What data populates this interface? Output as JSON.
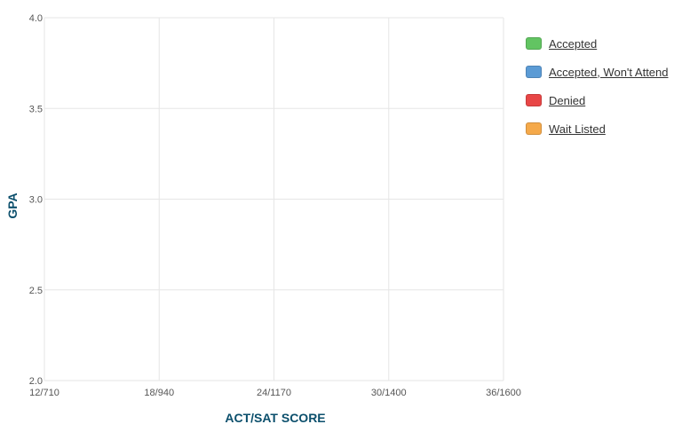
{
  "chart_data": {
    "type": "scatter",
    "xlabel": "ACT/SAT SCORE",
    "ylabel": "GPA",
    "x_ticks": [
      "12/710",
      "18/940",
      "24/1170",
      "30/1400",
      "36/1600"
    ],
    "x_tick_values": [
      12,
      18,
      24,
      30,
      36
    ],
    "xlim": [
      12,
      36
    ],
    "y_ticks": [
      "2.0",
      "2.5",
      "3.0",
      "3.5",
      "4.0"
    ],
    "y_tick_values": [
      2.0,
      2.5,
      3.0,
      3.5,
      4.0
    ],
    "ylim": [
      2.0,
      4.0
    ],
    "grid": true,
    "legend_position": "right",
    "series": [
      {
        "name": "Accepted",
        "color": "#62c462",
        "points": []
      },
      {
        "name": "Accepted, Won't Attend",
        "color": "#5b9bd5",
        "points": []
      },
      {
        "name": "Denied",
        "color": "#e84646",
        "points": []
      },
      {
        "name": "Wait Listed",
        "color": "#f5a94a",
        "points": []
      }
    ]
  }
}
